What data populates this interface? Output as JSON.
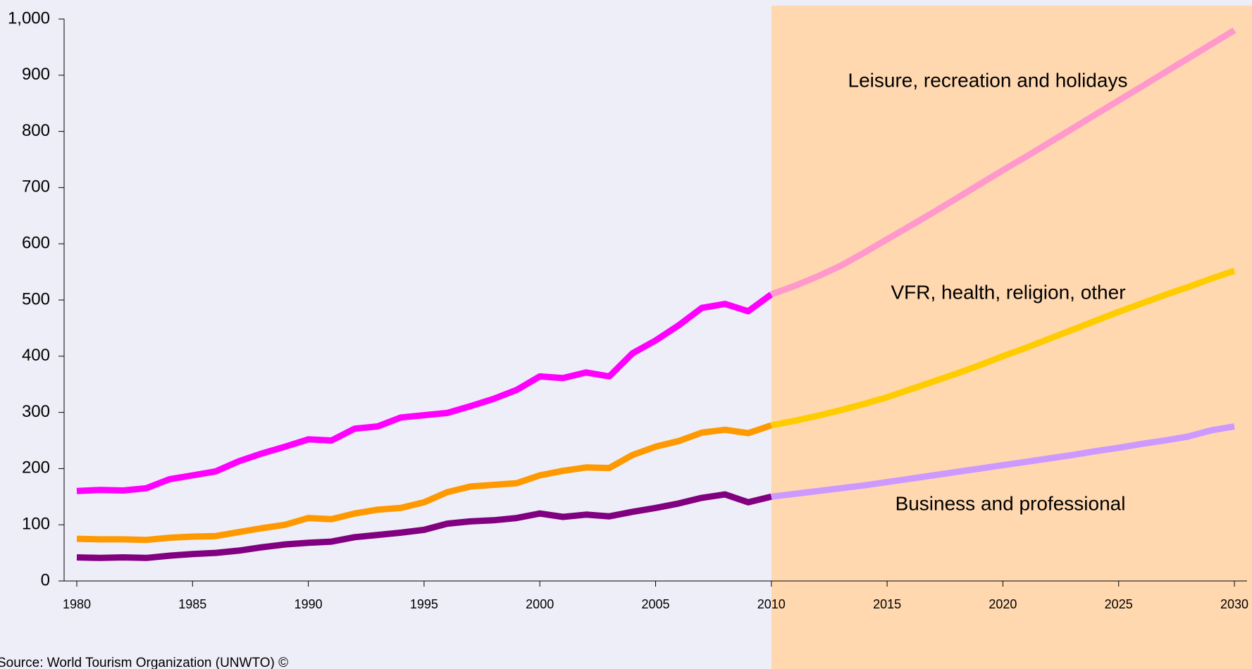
{
  "chart_data": {
    "type": "line",
    "x": [
      1980,
      1981,
      1982,
      1983,
      1984,
      1985,
      1986,
      1987,
      1988,
      1989,
      1990,
      1991,
      1992,
      1993,
      1994,
      1995,
      1996,
      1997,
      1998,
      1999,
      2000,
      2001,
      2002,
      2003,
      2004,
      2005,
      2006,
      2007,
      2008,
      2009,
      2010,
      2011,
      2012,
      2013,
      2014,
      2015,
      2016,
      2017,
      2018,
      2019,
      2020,
      2021,
      2022,
      2023,
      2024,
      2025,
      2026,
      2027,
      2028,
      2029,
      2030
    ],
    "forecast_start": 2010,
    "forecast_shade_color": "#ffd8b0",
    "series": [
      {
        "name": "Leisure, recreation and holidays",
        "color": "#ff00ff",
        "forecast_color": "#ff99cc",
        "values": [
          160,
          162,
          161,
          165,
          181,
          188,
          195,
          213,
          227,
          239,
          252,
          250,
          271,
          275,
          291,
          295,
          299,
          311,
          324,
          340,
          364,
          361,
          371,
          364,
          405,
          428,
          455,
          486,
          493,
          480,
          510,
          525,
          542,
          561,
          584,
          608,
          632,
          656,
          681,
          706,
          731,
          755,
          780,
          805,
          830,
          855,
          880,
          905,
          930,
          955,
          980
        ]
      },
      {
        "name": "VFR, health, religion, other",
        "color": "#ff9900",
        "forecast_color": "#ffcc00",
        "values": [
          75,
          74,
          74,
          73,
          77,
          79,
          80,
          87,
          94,
          100,
          112,
          110,
          120,
          127,
          130,
          140,
          158,
          168,
          171,
          174,
          188,
          196,
          202,
          201,
          224,
          239,
          249,
          264,
          269,
          263,
          277,
          285,
          294,
          304,
          315,
          327,
          341,
          355,
          369,
          384,
          400,
          415,
          431,
          447,
          463,
          479,
          494,
          509,
          523,
          538,
          552
        ]
      },
      {
        "name": "Business and professional",
        "color": "#800080",
        "forecast_color": "#cc99ff",
        "values": [
          42,
          41,
          42,
          41,
          45,
          48,
          50,
          54,
          60,
          65,
          68,
          70,
          78,
          82,
          86,
          91,
          102,
          106,
          108,
          112,
          120,
          114,
          118,
          115,
          123,
          130,
          138,
          148,
          154,
          140,
          150,
          155,
          160,
          165,
          170,
          176,
          182,
          188,
          194,
          200,
          206,
          212,
          218,
          224,
          231,
          237,
          244,
          250,
          257,
          268,
          275
        ]
      }
    ],
    "xlim": [
      1980,
      2030
    ],
    "xticks": [
      1980,
      1985,
      1990,
      1995,
      2000,
      2005,
      2010,
      2015,
      2020,
      2025,
      2030
    ],
    "ylim": [
      0,
      1000
    ],
    "yticks": [
      0,
      100,
      200,
      300,
      400,
      500,
      600,
      700,
      800,
      900,
      {
        "value": 1000,
        "label": "1,000"
      }
    ],
    "source": "Source: World Tourism Organization (UNWTO) ©"
  }
}
